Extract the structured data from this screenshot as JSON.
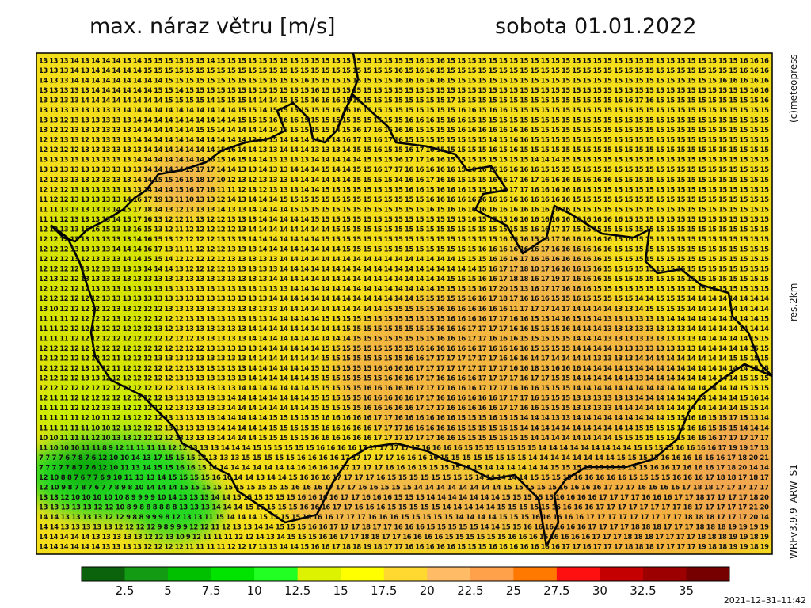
{
  "header": {
    "title": "max. náraz větru [m/s]",
    "date": "sobota 01.01.2022"
  },
  "side": {
    "copyright": "(c)meteopress",
    "resolution": "res.2km",
    "model": "WRFv3.9.9–ARW–S1"
  },
  "timestamp": "2021–12–31–11:42",
  "colorbar": {
    "colors": [
      "#0b640b",
      "#139c13",
      "#00c000",
      "#00e400",
      "#22ff22",
      "#ddf200",
      "#ffff00",
      "#ffd830",
      "#ffbb66",
      "#ffa04a",
      "#ff7800",
      "#ff1010",
      "#c40000",
      "#9c0000",
      "#760000"
    ],
    "labels": [
      "2.5",
      "5",
      "7.5",
      "10",
      "12.5",
      "15",
      "17.5",
      "20",
      "22.5",
      "25",
      "27.5",
      "30",
      "32.5",
      "35"
    ]
  },
  "grid": {
    "rows": [
      "13 13 13 14 13 14 14 14 15 14 15 15 15 15 15 15 14 15 15 15 15 15 15 15 15 15 15 15 15 15 15 15 15 15 15 15 16 15 16 15 15 15 15 15 15 15 15 15 15 15 15 15 15 15 15 15 15 15 15 15 15 15 15 15 15 15 15 16 16 16",
      "13 13 13 14 13 14 14 14 14 14 15 15 15 15 15 15 15 15 15 15 15 15 15 15 15 15 15 15 15 15 15 15 15 15 16 15 16 16 15 15 15 15 15 15 15 15 15 15 15 15 15 15 15 15 15 15 15 15 15 15 15 15 15 15 15 15 15 16 16 16",
      "14 13 13 14 14 14 14 14 14 14 14 14 15 15 15 15 15 15 15 15 15 15 15 15 15 16 15 15 15 15 15 15 15 15 16 16 16 16 16 15 15 15 15 15 15 15 15 15 15 15 15 15 15 15 15 15 15 15 15 15 15 15 15 15 15 16 16 16 16 16",
      "13 13 13 13 13 14 14 14 14 14 14 15 15 14 15 15 15 15 15 15 15 15 15 15 15 15 16 15 15 15 15 15 15 15 15 15 15 15 15 15 15 15 15 15 15 15 15 15 15 15 15 15 15 15 15 15 15 15 15 15 15 15 15 15 15 15 15 15 16 16",
      "13 13 13 13 14 14 14 14 14 14 14 14 15 15 15 15 14 15 15 15 14 14 14 15 15 15 16 16 16 15 15 15 15 15 15 15 15 15 15 17 15 15 15 15 15 15 15 15 15 15 15 15 15 15 15 16 16 17 16 15 15 15 15 15 15 15 15 15 15 16",
      "13 13 13 13 13 13 13 13 14 14 14 14 14 14 14 14 14 14 14 15 15 14 15 15 15 15 15 15 16 16 16 15 15 15 15 15 15 15 15 15 16 16 15 16 16 15 15 15 15 15 15 15 15 15 15 15 15 15 15 15 15 15 15 15 15 15 15 15 15 15",
      "13 13 12 13 13 13 13 13 13 14 14 14 14 14 14 14 14 14 14 15 15 15 16 16 16 15 15 15 15 15 15 15 15 15 15 16 16 16 15 16 16 15 15 15 15 15 15 15 15 15 15 15 15 15 15 15 15 15 15 15 15 15 15 15 15 15 15 15 15 15",
      "13 12 12 13 13 13 13 13 13 14 14 14 14 14 14 15 15 14 14 14 14 14 14 15 15 15 15 15 14 15 16 17 16 16 16 16 15 15 15 15 16 16 16 16 16 16 16 15 15 15 15 15 15 15 15 15 15 15 15 15 15 15 15 15 15 15 15 15 15 15",
      "12 12 13 13 12 13 13 13 13 14 14 14 14 14 14 14 14 14 14 14 13 14 15 14 14 14 14 14 14 16 17 13 16 17 16 15 15 15 15 15 15 15 15 14 15 16 16 15 15 15 15 15 15 15 15 15 15 15 15 15 15 15 15 15 15 15 15 15 15 15",
      "12 12 12 12 13 13 13 13 13 13 14 14 14 14 14 14 14 15 16 14 14 13 13 14 14 14 13 13 13 14 15 15 16 15 15 16 17 16 15 15 15 15 15 16 15 16 15 15 15 15 15 15 15 15 15 15 15 15 15 15 15 15 15 15 15 15 15 15 15 15",
      "13 13 13 13 13 13 13 13 13 14 14 14 14 14 14 14 16 15 16 15 14 14 13 13 13 13 14 14 14 14 14 15 15 15 16 17 17 16 16 15 15 15 15 15 15 15 15 14 14 14 15 15 15 15 15 15 15 15 15 15 15 15 15 15 15 15 15 15 15 15",
      "13 13 13 13 13 13 13 13 13 13 14 14 14 14 15 17 17 14 14 13 13 14 13 13 14 14 14 15 14 14 15 15 16 17 17 16 16 16 16 16 15 16 16 16 16 16 16 16 15 15 15 15 15 15 15 15 15 15 15 15 15 15 15 15 15 15 15 15 15 15",
      "12 12 13 13 13 13 13 13 13 14 14 15 15 16 15 18 17 10 12 13 12 13 13 13 14 14 14 14 14 14 15 15 15 15 14 16 16 17 16 16 15 15 15 16 16 17 16 17 16 16 16 16 16 16 16 15 15 15 15 15 15 15 15 15 15 15 15 15 15 15",
      "12 12 12 13 13 13 13 13 13 13 14 14 14 15 16 17 18 11 11 12 13 12 13 13 13 14 14 15 15 15 15 15 15 15 15 16 16 15 16 16 16 15 15 15 16 17 17 16 16 16 16 16 15 15 15 15 15 15 15 15 15 15 15 15 15 15 15 15 15 15",
      "11 12 12 13 13 13 13 13 14 16 17 19 13 11 10 13 13 12 14 13 14 14 14 15 15 15 15 15 15 15 15 15 15 15 15 15 15 16 16 16 16 16 16 16 16 16 16 16 16 16 16 15 15 15 15 15 15 15 15 15 15 15 15 15 15 15 15 15 15 15",
      "11 11 13 13 13 13 13 14 15 17 18 14 13 12 13 13 13 14 13 13 14 14 14 14 15 15 15 15 15 15 15 15 15 15 15 15 15 16 15 16 16 16 16 16 16 16 16 16 16 16 16 15 15 15 15 15 15 15 15 15 15 15 15 15 15 15 15 15 15 15",
      "11 11 12 13 13 13 13 14 15 17 16 13 12 12 11 13 12 12 13 13 13 14 14 14 14 14 15 15 15 15 15 15 15 15 15 15 15 15 15 15 15 16 15 15 15 16 16 16 16 16 16 16 16 16 16 16 15 15 15 15 15 15 15 15 15 15 15 15 15 15",
      "12 12 13 13 15 16 15 13 13 16 15 13 12 11 12 12 12 12 12 13 14 14 14 14 14 14 14 14 15 15 15 15 15 15 15 15 15 15 15 15 15 15 15 15 15 15 15 16 16 17 17 15 15 15 15 15 15 15 15 15 15 15 15 15 15 15 15 15 15 15",
      "12 12 12 13 13 13 13 13 13 14 16 15 13 12 12 12 12 13 13 13 14 14 14 14 14 14 14 15 15 15 15 15 15 15 15 15 15 15 15 15 15 15 15 15 16 16 16 15 16 17 16 16 16 16 16 15 16 15 15 15 15 15 15 15 15 15 15 15 15 15",
      "12 12 12 13 13 13 13 14 14 14 16 17 13 11 11 12 12 12 13 13 13 14 14 14 14 14 14 14 14 15 15 15 15 15 15 15 15 15 15 15 15 15 16 16 16 16 16 16 17 16 16 16 16 16 16 15 15 15 15 15 15 15 15 15 15 15 15 15 15 15",
      "12 12 12 13 12 13 13 13 14 14 15 15 14 12 12 12 12 12 13 13 13 13 13 14 14 14 14 14 14 14 14 14 14 14 14 14 14 14 14 14 15 15 15 16 16 16 17 16 16 16 16 16 16 16 15 15 15 15 15 15 15 15 15 15 15 15 15 15 15 15",
      "12 12 12 12 13 12 13 13 13 13 14 14 14 13 12 12 12 12 13 13 13 13 13 14 14 14 14 14 14 14 14 14 14 14 14 14 14 14 14 14 14 14 15 16 17 17 18 10 17 16 16 16 15 16 15 15 15 15 15 15 15 15 15 15 15 15 15 15 15 15",
      "12 13 12 12 13 13 13 13 13 13 13 13 13 13 13 13 13 13 13 13 13 13 14 14 14 14 14 14 14 14 14 14 14 14 14 14 14 14 14 15 15 15 16 16 17 18 18 16 17 19 17 16 16 16 15 15 15 15 15 15 15 15 15 15 15 15 15 15 15 15",
      "12 12 12 12 12 13 13 13 13 13 13 13 13 13 13 13 13 13 13 13 13 13 13 13 14 14 14 14 14 14 14 14 14 14 14 14 14 14 15 15 15 15 16 17 20 15 13 16 17 17 16 16 16 15 15 15 15 15 15 15 15 15 15 15 15 15 15 15 15 15",
      "12 12 12 12 12 12 13 13 13 13 13 13 13 13 13 13 13 13 13 13 13 13 14 14 14 14 14 14 14 14 14 14 14 14 14 14 15 15 15 15 15 16 16 17 18 17 16 16 16 15 15 16 15 15 15 15 15 14 14 15 15 15 14 14 14 14 14 14 14 14",
      "13 10 12 12 12 12 12 13 13 12 12 12 13 13 13 13 13 13 13 13 13 13 13 14 14 14 14 14 14 14 14 14 14 15 15 15 15 15 16 16 16 16 16 16 16 11 17 17 17 14 17 14 14 14 14 13 13 14 15 15 15 15 14 14 14 14 14 14 14 14",
      "11 11 11 12 12 12 12 13 12 12 12 12 12 12 13 13 13 13 13 13 13 13 14 14 14 14 14 15 15 15 15 15 15 15 15 15 15 15 15 16 16 16 16 17 17 16 16 15 15 14 16 15 15 14 13 13 13 13 13 13 14 14 14 14 14 14 14 14 14 15",
      "11 11 12 12 12 12 12 12 12 12 12 13 12 13 13 13 13 13 13 13 14 14 14 14 14 14 14 14 14 15 15 15 15 15 15 15 15 15 16 16 16 17 17 17 17 16 16 15 15 15 16 14 14 14 13 13 13 13 13 13 13 13 14 14 14 14 14 14 14 14",
      "11 11 11 12 12 12 12 12 12 12 12 12 12 12 12 13 13 13 13 13 14 14 14 14 14 14 14 14 14 14 15 15 15 15 15 15 15 15 16 16 16 17 17 16 16 16 15 15 15 15 15 14 14 14 13 13 13 13 13 13 13 13 13 14 14 14 14 14 15 15",
      "12 12 12 12 12 12 12 12 12 12 12 12 12 12 12 12 13 13 13 13 13 14 14 14 14 14 14 15 15 15 15 15 15 15 15 15 16 16 16 16 16 16 17 16 16 16 16 15 15 15 15 14 14 14 14 13 13 13 13 13 13 13 13 14 14 14 14 14 15 15",
      "12 12 12 12 12 12 12 11 12 12 12 13 13 13 13 13 13 13 13 13 14 14 14 14 14 14 14 15 15 15 15 15 15 15 15 16 16 17 17 17 17 17 17 17 16 16 16 14 17 14 14 14 14 13 13 13 13 14 14 14 14 14 14 14 14 14 15 15 15 15",
      "12 12 12 12 13 13 12 11 12 12 12 12 12 12 13 13 13 13 13 13 14 14 14 14 14 14 15 15 15 15 15 15 16 16 16 16 17 17 17 17 17 17 17 17 17 16 16 18 13 16 16 16 14 14 14 14 13 14 14 14 14 14 14 14 14 14 14 14 15 15",
      "12 12 12 12 13 13 12 12 12 12 12 12 12 13 13 13 13 13 13 13 14 14 14 14 14 14 15 15 15 15 15 15 15 16 16 16 17 17 16 16 16 16 17 17 17 17 16 17 17 15 15 14 14 14 14 14 14 13 14 14 14 14 14 14 14 14 14 15 15 15",
      "12 12 12 12 12 12 12 12 12 12 12 12 12 13 13 13 13 13 13 14 14 14 14 14 14 14 15 15 15 15 15 16 16 16 16 16 17 17 17 16 16 16 17 17 17 16 16 16 15 15 15 14 14 14 14 14 14 14 14 14 14 14 14 14 14 14 14 15 15 15",
      "12 11 11 12 12 12 12 12 12 12 12 12 13 13 13 13 13 13 14 14 14 14 14 14 14 14 15 15 15 15 15 16 16 16 16 16 17 17 16 16 16 16 16 16 17 17 17 16 15 15 15 13 13 13 13 13 13 14 14 14 14 14 14 14 14 14 14 15 16 14",
      "11 11 11 12 12 12 13 13 12 12 12 12 12 13 13 13 13 13 14 14 14 14 14 14 14 14 15 15 15 15 15 16 16 16 16 16 17 17 17 16 16 16 16 16 17 17 16 16 15 15 15 13 13 13 13 14 14 14 14 14 14 14 14 14 14 14 14 15 15 14",
      "11 11 11 11 12 10 11 12 13 12 12 12 13 13 13 13 13 14 14 14 14 14 15 15 15 15 15 16 16 16 16 16 17 17 16 16 16 16 16 16 15 15 15 16 15 15 14 14 14 13 13 14 14 14 14 14 14 14 14 14 15 15 16 16 15 15 17 15 13 14",
      "11 11 11 11 11 10 10 12 13 12 12 12 13 13 13 13 13 14 14 14 14 14 15 15 15 15 15 16 16 16 16 16 17 17 17 16 16 16 16 16 15 15 15 15 15 15 14 14 14 14 14 14 14 14 14 14 14 15 15 15 15 15 16 16 15 15 15 14 14 14",
      "10 10 11 11 11 12 10 13 13 12 12 12 12 13 13 13 13 14 14 14 14 15 15 15 15 15 16 16 16 16 16 16 17 17 17 17 17 17 16 16 15 15 15 15 15 15 15 14 14 14 14 14 14 14 14 15 15 15 15 15 15 15 16 16 16 17 17 17 17 17",
      "11 10 10 10 11 11 8 9 12 11 11 11 11 12 12 13 13 13 14 14 14 15 15 15 15 15 15 16 16 16 16 17 17 17 17 17 17 16 16 16 16 15 15 15 15 15 15 15 14 14 14 14 14 14 14 14 14 15 15 15 15 16 16 16 16 17 19 19 17 13",
      "7 7 7 7 6 7 8 7 6 12 10 10 14 13 17 15 15 15 13 13 13 13 15 15 15 15 15 16 16 16 16 17 17 17 17 17 16 16 16 16 15 15 15 15 15 15 15 15 14 14 14 14 14 14 14 14 15 15 15 15 16 16 16 16 16 16 17 18 20 21",
      "7 7 7 7 7 8 7 7 6 12 10 11 13 14 15 15 16 16 15 14 14 14 14 14 14 14 14 16 16 16 16 17 17 17 17 16 16 16 15 15 15 15 15 15 14 14 14 14 14 14 15 15 15 15 15 15 15 15 15 16 16 17 16 16 16 17 18 20 14 14",
      "12 10 8 8 7 6 7 7 6 9 10 11 13 13 14 15 15 15 15 16 16 14 14 13 14 14 15 16 16 16 17 17 17 17 16 15 15 15 15 15 15 15 15 14 14 14 14 14 15 15 15 15 16 16 16 16 16 15 15 15 15 16 16 16 17 18 18 17 18 17",
      "12 10 9 8 7 8 7 6 7 7 8 9 8 10 14 14 14 15 15 15 15 15 15 15 15 15 15 16 16 16 17 17 17 16 16 15 15 15 14 14 14 14 14 14 14 14 15 15 15 15 15 16 16 16 16 17 17 17 16 16 16 16 17 18 18 17 17 17 17 17",
      "13 13 12 10 10 10 10 10 8 9 9 9 9 10 14 13 13 13 14 14 15 15 15 15 15 15 16 16 16 16 17 17 16 16 16 15 15 15 14 14 14 14 14 14 14 15 15 15 15 15 16 16 16 16 17 17 17 17 16 16 16 17 17 18 17 17 17 17 18 20",
      "13 13 13 13 13 12 12 10 8 9 8 8 8 8 8 8 13 13 13 14 14 14 15 15 15 15 15 16 16 16 17 17 16 16 16 15 15 15 15 15 14 14 14 14 14 15 15 15 15 15 16 16 16 16 17 17 17 17 17 17 17 17 18 17 17 17 17 17 21 20",
      "14 14 13 13 13 13 12 12 9 8 8 9 9 9 8 12 13 13 11 15 14 14 14 15 15 15 15 16 16 16 17 17 17 16 16 16 15 15 15 15 15 14 14 14 14 15 15 15 16 16 16 16 16 17 17 17 17 17 17 17 17 17 18 18 18 17 17 17 20 14",
      "14 14 13 13 13 13 13 12 12 12 12 9 8 9 9 9 12 12 11 12 13 13 14 14 15 15 15 16 16 17 17 17 18 17 17 16 16 16 15 15 15 15 15 14 14 15 15 16 16 16 16 16 16 17 17 17 17 18 18 18 17 17 17 18 18 18 19 19 19 19",
      "14 14 14 14 14 13 13 13 13 13 12 12 13 10 9 12 11 11 11 12 12 14 13 14 15 15 15 16 16 17 17 18 18 17 17 16 16 16 16 15 15 15 15 15 15 16 16 16 16 16 16 16 16 17 17 17 18 18 18 17 17 17 17 18 18 18 19 19 18 19",
      "14 14 14 14 14 14 13 13 13 13 12 12 12 12 11 11 11 11 12 12 17 13 13 14 14 15 16 16 17 18 18 19 18 17 17 16 16 16 16 16 15 15 15 16 16 16 16 16 16 16 17 17 16 17 17 17 18 18 18 17 17 17 17 19 18 18 19 19 18 19"
    ]
  }
}
